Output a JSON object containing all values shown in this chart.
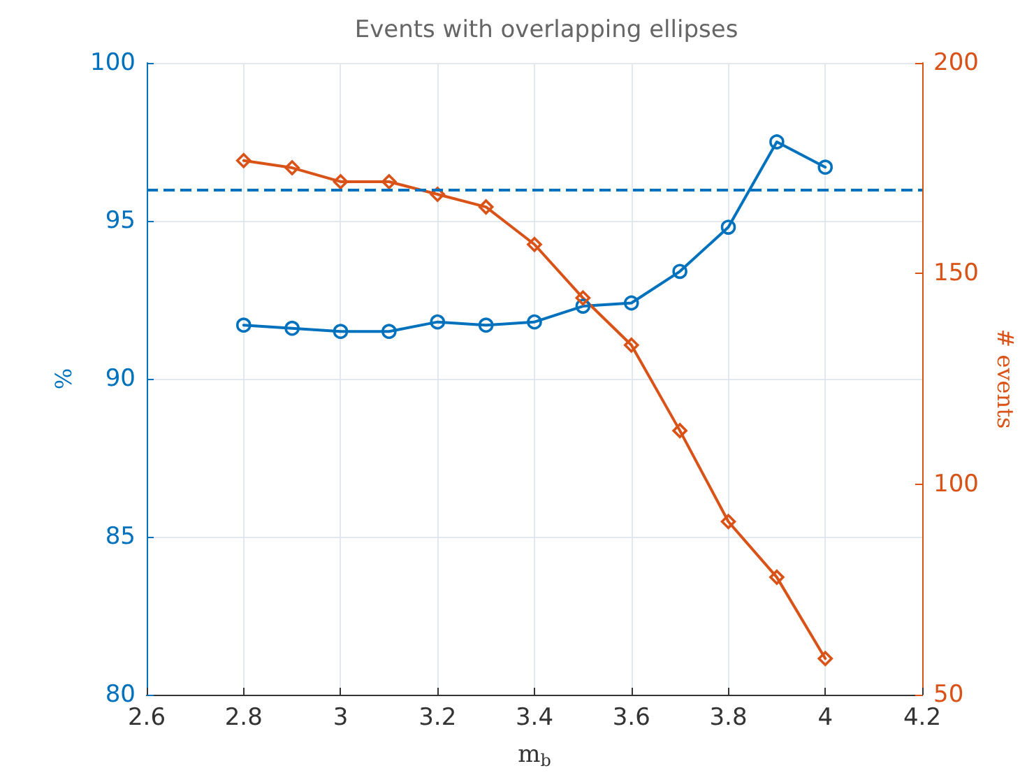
{
  "chart_data": {
    "type": "line",
    "title": "Events with overlapping ellipses",
    "xlabel": "m$_{b}$",
    "ylabel": "%",
    "y2label": "# events",
    "x": [
      2.8,
      2.9,
      3.0,
      3.1,
      3.2,
      3.3,
      3.4,
      3.5,
      3.6,
      3.7,
      3.8,
      3.9,
      4.0
    ],
    "series": [
      {
        "color": "#0072bd",
        "marker": "circle",
        "values": [
          91.7,
          91.6,
          91.5,
          91.5,
          91.8,
          91.7,
          91.8,
          92.3,
          92.4,
          93.4,
          94.8,
          97.5,
          96.7
        ]
      },
      {
        "color": "#d95319",
        "marker": "diamond",
        "axis": "y2",
        "values": [
          176.8,
          175.1,
          171.8,
          171.8,
          168.8,
          165.8,
          156.9,
          144.2,
          133,
          112.7,
          91.1,
          77.9,
          58.6
        ]
      }
    ],
    "xlim": [
      2.6,
      4.2
    ],
    "xticks": [
      2.6,
      2.8,
      3,
      3.2,
      3.4,
      3.6,
      3.8,
      4,
      4.2
    ],
    "ylim": [
      80,
      100
    ],
    "yticks": [
      80,
      85,
      90,
      95,
      100
    ],
    "y2lim": [
      50,
      200
    ],
    "y2ticks": [
      50,
      100,
      150,
      200
    ],
    "ref_lines": [
      {
        "axis": "y",
        "value": 96,
        "color": "#0072bd",
        "line_style": "dashed"
      }
    ],
    "grid": true
  }
}
